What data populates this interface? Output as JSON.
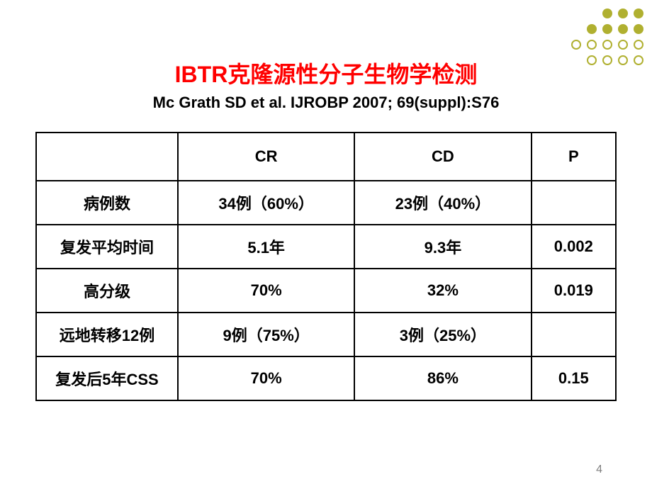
{
  "decoration": {
    "solid_color": "#b0b030",
    "hollow_border": "#b0b030",
    "hollow_fill": "#ffffff",
    "rows": [
      {
        "count": 3,
        "solid": true
      },
      {
        "count": 4,
        "solid": true
      },
      {
        "count": 5,
        "solid": false
      },
      {
        "count": 4,
        "solid": false
      }
    ]
  },
  "title": "IBTR克隆源性分子生物学检测",
  "subtitle": "Mc Grath SD et al. IJROBP 2007; 69(suppl):S76",
  "table": {
    "columns": [
      "",
      "CR",
      "CD",
      "P"
    ],
    "rows": [
      [
        "病例数",
        "34例（60%）",
        "23例（40%）",
        ""
      ],
      [
        "复发平均时间",
        "5.1年",
        "9.3年",
        "0.002"
      ],
      [
        "高分级",
        "70%",
        "32%",
        "0.019"
      ],
      [
        "远地转移12例",
        "9例（75%）",
        "3例（25%）",
        ""
      ],
      [
        "复发后5年CSS",
        "70%",
        "86%",
        "0.15"
      ]
    ],
    "header_fontsize": 22,
    "cell_fontsize": 22,
    "border_color": "#000000",
    "text_color": "#000000"
  },
  "page_number": "4",
  "colors": {
    "title_color": "#ff0000",
    "subtitle_color": "#000000",
    "background": "#ffffff",
    "page_number_color": "#808080"
  }
}
